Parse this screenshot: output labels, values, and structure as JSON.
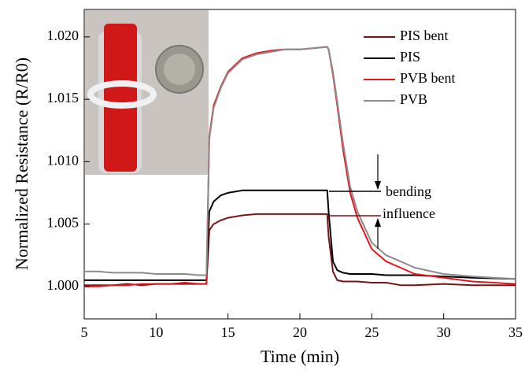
{
  "chart_data": {
    "type": "line",
    "xlabel": "Time (min)",
    "ylabel": "Normalized Resistance (R/R0)",
    "xlim": [
      5,
      35
    ],
    "ylim": [
      0.9974,
      1.0222
    ],
    "xticks": [
      5,
      10,
      15,
      20,
      25,
      30,
      35
    ],
    "yticks": [
      {
        "value": 1.0,
        "label": "1.000"
      },
      {
        "value": 1.005,
        "label": "1.005"
      },
      {
        "value": 1.01,
        "label": "1.010"
      },
      {
        "value": 1.015,
        "label": "1.015"
      },
      {
        "value": 1.02,
        "label": "1.020"
      }
    ],
    "legend": "upper right",
    "annotations": [
      "bending",
      "influence"
    ],
    "x": [
      5,
      6,
      7,
      8,
      9,
      10,
      11,
      12,
      13,
      13.5,
      13.7,
      14,
      14.5,
      15,
      16,
      17,
      18,
      19,
      20,
      21,
      21.9,
      22,
      22.3,
      22.6,
      23,
      23.5,
      24,
      25,
      26,
      27,
      28,
      30,
      32,
      35
    ],
    "series": [
      {
        "name": "PIS bent",
        "color": "#7a1414",
        "values": [
          1.0001,
          1.0001,
          1.0001,
          1.0002,
          1.0001,
          1.0002,
          1.0002,
          1.0002,
          1.0002,
          1.0002,
          1.0045,
          1.005,
          1.0053,
          1.0055,
          1.0057,
          1.0058,
          1.0058,
          1.0058,
          1.0058,
          1.0058,
          1.0058,
          1.004,
          1.0012,
          1.0005,
          1.0004,
          1.0004,
          1.0004,
          1.0003,
          1.0003,
          1.0001,
          1.0001,
          1.0002,
          1.0001,
          1.0001
        ]
      },
      {
        "name": "PIS",
        "color": "#000000",
        "values": [
          1.0005,
          1.0005,
          1.0005,
          1.0005,
          1.0005,
          1.0005,
          1.0005,
          1.0005,
          1.0005,
          1.0005,
          1.006,
          1.0068,
          1.0073,
          1.0075,
          1.0077,
          1.0077,
          1.0077,
          1.0077,
          1.0077,
          1.0077,
          1.0077,
          1.006,
          1.002,
          1.0013,
          1.0011,
          1.001,
          1.001,
          1.001,
          1.0009,
          1.0009,
          1.0009,
          1.0008,
          1.0007,
          1.0006
        ]
      },
      {
        "name": "PVB bent",
        "color": "#e8141c",
        "values": [
          1.0,
          1.0,
          1.0001,
          1.0001,
          1.0002,
          1.0002,
          1.0002,
          1.0003,
          1.0002,
          1.0002,
          1.012,
          1.0145,
          1.016,
          1.0172,
          1.0183,
          1.0187,
          1.0189,
          1.019,
          1.019,
          1.0191,
          1.0192,
          1.019,
          1.017,
          1.0145,
          1.011,
          1.0075,
          1.0055,
          1.003,
          1.002,
          1.0015,
          1.001,
          1.0007,
          1.0004,
          1.0002
        ]
      },
      {
        "name": "PVB",
        "color": "#8c8c8c",
        "values": [
          1.0012,
          1.0012,
          1.0011,
          1.0011,
          1.0011,
          1.001,
          1.001,
          1.001,
          1.0009,
          1.0009,
          1.0118,
          1.0143,
          1.0159,
          1.0171,
          1.0182,
          1.0186,
          1.0188,
          1.019,
          1.019,
          1.0191,
          1.0192,
          1.019,
          1.0172,
          1.0148,
          1.0115,
          1.008,
          1.006,
          1.0035,
          1.0025,
          1.002,
          1.0015,
          1.001,
          1.0008,
          1.0006
        ]
      }
    ]
  }
}
